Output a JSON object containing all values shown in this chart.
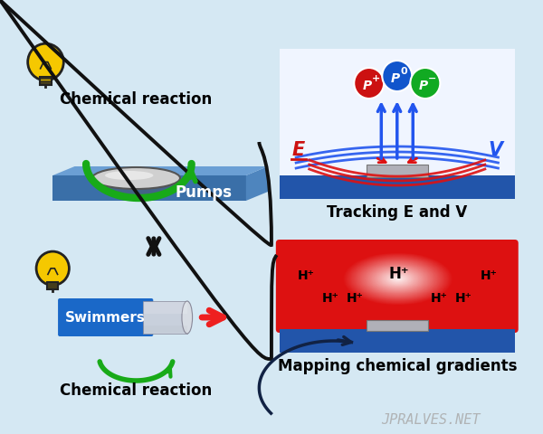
{
  "background_color": "#d5e8f3",
  "watermark": "JPRALVES.NET",
  "bulb_color": "#f5c800",
  "bulb_outline": "#222222",
  "pump_platform_top": "#6b9fd4",
  "pump_platform_front": "#3a6fa8",
  "pump_platform_side": "#4e85be",
  "pump_disk_color": "#d0d0d0",
  "pump_disk_edge": "#555555",
  "pump_arrow_color": "#18aa18",
  "swimmer_body_color": "#1a68c8",
  "swimmer_cap_color": "#c8d0dc",
  "swimmer_cap_edge": "#888898",
  "swimmer_arrow_color": "#ee2020",
  "double_arrow_color": "#111111",
  "brace_color": "#111111",
  "tracking_platform_color": "#2255aa",
  "tracking_substrate_color": "#b0b0b8",
  "tracking_blue_line": "#2255ee",
  "tracking_red_line": "#dd1111",
  "p_plus_color": "#cc1111",
  "p_zero_color": "#1155cc",
  "p_minus_color": "#11aa22",
  "E_label_color": "#cc1111",
  "V_label_color": "#2255ee",
  "mapping_red_bg": "#dd1111",
  "mapping_platform_color": "#2255aa",
  "curve_arrow_color": "#112244",
  "label_chemical_reaction": "Chemical reaction",
  "label_pumps": "Pumps",
  "label_swimmers": "Swimmers",
  "label_tracking": "Tracking E and V",
  "label_mapping": "Mapping chemical gradients",
  "label_chemical_reaction2": "Chemical reaction"
}
